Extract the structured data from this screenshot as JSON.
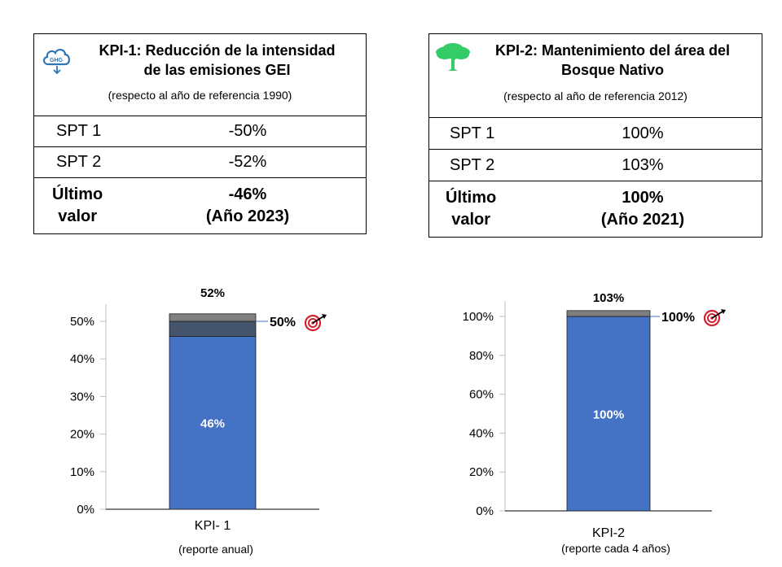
{
  "kpi1": {
    "title_line1": "KPI-1: Reducción de la intensidad",
    "title_line2": "de las emisiones GEI",
    "reference": "(respecto al año de referencia 1990)",
    "icon": "ghg-cloud-icon",
    "icon_text": "GHG",
    "rows": [
      {
        "label": "SPT 1",
        "value": "-50%"
      },
      {
        "label": "SPT 2",
        "value": "-52%"
      }
    ],
    "last_label_line1": "Último",
    "last_label_line2": "valor",
    "last_value_line1": "-46%",
    "last_value_line2": "(Año 2023)"
  },
  "kpi2": {
    "title_line1": "KPI-2: Mantenimiento del área del",
    "title_line2": "Bosque Nativo",
    "reference": "(respecto al año de referencia 2012)",
    "icon": "tree-icon",
    "rows": [
      {
        "label": "SPT 1",
        "value": "100%"
      },
      {
        "label": "SPT 2",
        "value": "103%"
      }
    ],
    "last_label_line1": "Último",
    "last_label_line2": "valor",
    "last_value_line1": "100%",
    "last_value_line2": "(Año 2021)"
  },
  "colors": {
    "bar_main": "#4472c4",
    "bar_dark": "#44546a",
    "bar_grey": "#7f7f7f",
    "target_red": "#d0202e",
    "tree_green": "#33cc66",
    "cloud_blue": "#2e75b6"
  },
  "chart_data": [
    {
      "type": "bar",
      "stacked": true,
      "categories": [
        "KPI- 1"
      ],
      "series": [
        {
          "values": [
            46
          ],
          "label": "46%"
        },
        {
          "values": [
            4
          ]
        },
        {
          "values": [
            2
          ]
        }
      ],
      "total_label": "52%",
      "target_label": "50%",
      "target_value": 50,
      "caption": "(reporte anual)",
      "ylim": [
        0,
        55
      ],
      "yticks": [
        0,
        10,
        20,
        30,
        40,
        50
      ],
      "ytick_labels": [
        "0%",
        "10%",
        "20%",
        "30%",
        "40%",
        "50%"
      ]
    },
    {
      "type": "bar",
      "stacked": true,
      "categories": [
        "KPI-2"
      ],
      "series": [
        {
          "values": [
            100
          ],
          "label": "100%"
        },
        {
          "values": [
            3
          ]
        }
      ],
      "total_label": "103%",
      "target_label": "100%",
      "target_value": 100,
      "caption": "(reporte cada 4 años)",
      "ylim": [
        0,
        106
      ],
      "yticks": [
        0,
        20,
        40,
        60,
        80,
        100
      ],
      "ytick_labels": [
        "0%",
        "20%",
        "40%",
        "60%",
        "80%",
        "100%"
      ]
    }
  ]
}
